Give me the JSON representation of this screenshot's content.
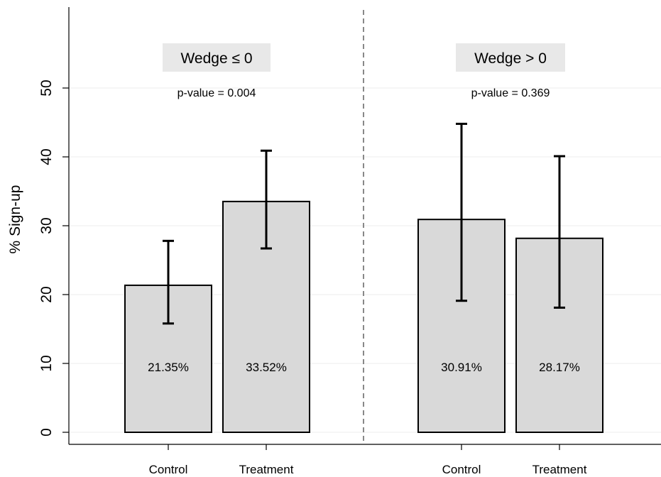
{
  "chart_data": {
    "type": "bar",
    "ylabel": "% Sign-up",
    "xlabel": "",
    "ylim": [
      0,
      60
    ],
    "yticks": [
      0,
      10,
      20,
      30,
      40,
      50
    ],
    "grid": true,
    "panels": [
      {
        "title": "Wedge ≤ 0",
        "pvalue_text": "p-value = 0.004",
        "categories": [
          "Control",
          "Treatment"
        ],
        "values": [
          21.35,
          33.52
        ],
        "value_labels": [
          "21.35%",
          "33.52%"
        ],
        "ci_low": [
          15.8,
          26.7
        ],
        "ci_high": [
          27.8,
          40.9
        ]
      },
      {
        "title": "Wedge > 0",
        "pvalue_text": "p-value = 0.369",
        "categories": [
          "Control",
          "Treatment"
        ],
        "values": [
          30.91,
          28.17
        ],
        "value_labels": [
          "30.91%",
          "28.17%"
        ],
        "ci_low": [
          19.1,
          18.1
        ],
        "ci_high": [
          44.8,
          40.1
        ]
      }
    ],
    "colors": {
      "bar_fill": "#d9d9d9",
      "bar_stroke": "#000000",
      "grid": "#eeeeee",
      "divider": "#888888",
      "title_box": "#e8e8e8"
    }
  }
}
